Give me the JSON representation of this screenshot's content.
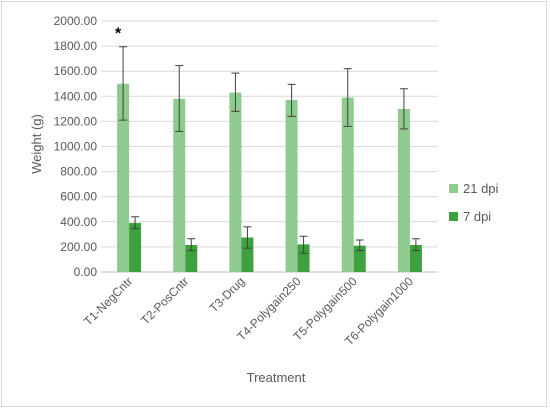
{
  "chart_data": {
    "type": "bar",
    "title": "",
    "xlabel": "Treatment",
    "ylabel": "Weight (g)",
    "ylim": [
      0,
      2000
    ],
    "ytick_step": 200,
    "ytick_decimals": 2,
    "grid": true,
    "legend_position": "right",
    "categories": [
      "T1-NegCntr",
      "T2-PosCntr",
      "T3-Drug",
      "T4-Polygain250",
      "T5-Polygain500",
      "T6-Polygain1000"
    ],
    "series": [
      {
        "name": "21 dpi",
        "color": "#8fca8f",
        "values": [
          1500,
          1380,
          1430,
          1370,
          1390,
          1300
        ],
        "err_low": [
          1210,
          1120,
          1280,
          1240,
          1160,
          1140
        ],
        "err_high": [
          1795,
          1645,
          1585,
          1495,
          1620,
          1460
        ]
      },
      {
        "name": "7 dpi",
        "color": "#3ea03e",
        "values": [
          390,
          215,
          275,
          220,
          210,
          215
        ],
        "err_low": [
          345,
          170,
          190,
          150,
          170,
          170
        ],
        "err_high": [
          440,
          265,
          360,
          285,
          255,
          265
        ]
      }
    ],
    "annotations": [
      {
        "text": "*",
        "category": "T1-NegCntr",
        "series": "21 dpi",
        "y": 1900
      }
    ]
  }
}
